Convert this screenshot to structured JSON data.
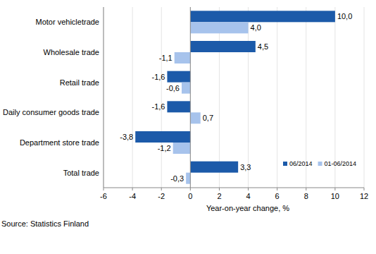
{
  "chart_data": {
    "type": "bar",
    "orientation": "horizontal",
    "categories": [
      "Motor vehicletrade",
      "Wholesale trade",
      "Retail trade",
      "Daily consumer goods trade",
      "Department store trade",
      "Total trade"
    ],
    "series": [
      {
        "name": "06/2014",
        "color": "#1c5aa9",
        "values": [
          10.0,
          4.5,
          -1.6,
          -1.6,
          -3.8,
          3.3
        ],
        "value_labels": [
          "10,0",
          "4,5",
          "-1,6",
          "-1,6",
          "-3,8",
          "3,3"
        ]
      },
      {
        "name": "01-06/2014",
        "color": "#a7c3ec",
        "values": [
          4.0,
          -1.1,
          -0.6,
          0.7,
          -1.2,
          -0.3
        ],
        "value_labels": [
          "4,0",
          "-1,1",
          "-0,6",
          "0,7",
          "-1,2",
          "-0,3"
        ]
      }
    ],
    "xlabel": "Year-on-year change, %",
    "source": "Source: Statistics Finland",
    "xlim": [
      -6,
      12
    ],
    "xticks": [
      -6,
      -4,
      -2,
      0,
      2,
      4,
      6,
      8,
      10,
      12
    ],
    "grid": true,
    "legend": "lower right",
    "data_labels": true
  }
}
